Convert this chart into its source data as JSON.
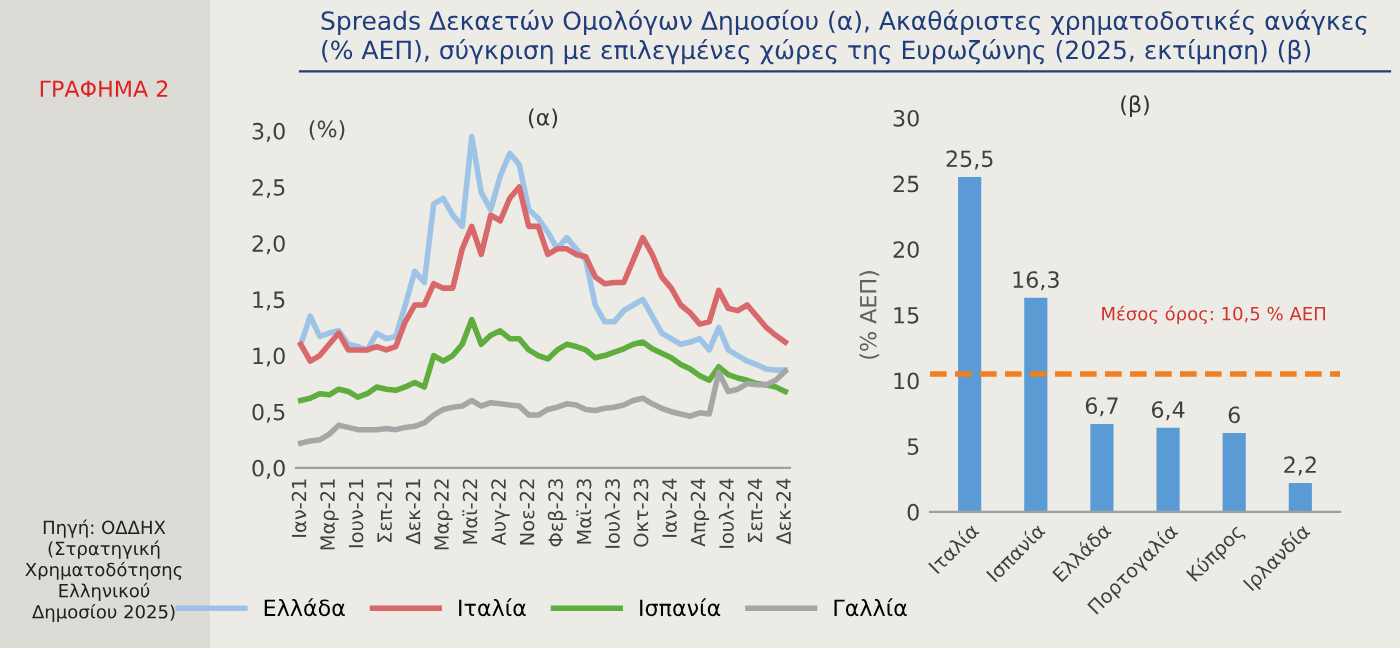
{
  "chart_data": [
    {
      "type": "line",
      "title": "Spreads Δεκαετών Ομολόγων Δημοσίου (α), Ακαθάριστες χρηματοδοτικές ανάγκες (% ΑΕΠ), σύγκριση με επιλεγμένες χώρες της Ευρωζώνης (2025, εκτίμηση) (β)",
      "subtitle": "(α)",
      "ylabel": "(%)",
      "annotations": [
        "ΓΡΑΦΗΜΑ 2",
        "Πηγή: ΟΔΔΗΧ (Στρατηγική Χρηματοδότησης Ελληνικού Δημοσίου 2025)"
      ],
      "categories": [
        "Ιαν-21",
        null,
        null,
        "Μαρ-21",
        null,
        null,
        "Ιουν-21",
        null,
        null,
        "Σεπ-21",
        null,
        null,
        "Δεκ-21",
        null,
        null,
        "Μαρ-22",
        null,
        null,
        "Μαϊ-22",
        null,
        null,
        "Αυγ-22",
        null,
        null,
        "Νοε-22",
        null,
        null,
        "Φεβ-23",
        null,
        null,
        "Μαϊ-23",
        null,
        null,
        "Ιουλ-23",
        null,
        null,
        "Οκτ-23",
        null,
        null,
        "Ιαν-24",
        null,
        null,
        "Απρ-24",
        null,
        null,
        "Ιουλ-24",
        null,
        null,
        "Σεπ-24",
        null,
        null,
        "Δεκ-24"
      ],
      "ylim": [
        0,
        3
      ],
      "yticks": [
        {
          "value": 0,
          "label": "0,0"
        },
        {
          "value": 0.5,
          "label": "0,5"
        },
        {
          "value": 1,
          "label": "1,0"
        },
        {
          "value": 1.5,
          "label": "1,5"
        },
        {
          "value": 2,
          "label": "2,0"
        },
        {
          "value": 2.5,
          "label": "2,5"
        },
        {
          "value": 3,
          "label": "3,0"
        }
      ],
      "grid": false,
      "legend": "bottom",
      "marker": "none",
      "line_style": "solid",
      "series": [
        {
          "name": "Ελλάδα",
          "color": "#9dc3e6",
          "values": [
            1.1,
            1.35,
            1.17,
            1.2,
            1.22,
            1.1,
            1.08,
            1.05,
            1.2,
            1.15,
            1.17,
            1.45,
            1.75,
            1.65,
            2.35,
            2.4,
            2.25,
            2.15,
            2.95,
            2.45,
            2.3,
            2.6,
            2.8,
            2.7,
            2.3,
            2.22,
            2.1,
            1.95,
            2.05,
            1.95,
            1.85,
            1.45,
            1.3,
            1.3,
            1.4,
            1.45,
            1.5,
            1.35,
            1.2,
            1.15,
            1.1,
            1.12,
            1.15,
            1.05,
            1.25,
            1.05,
            1.0,
            0.95,
            0.92,
            0.88,
            0.87,
            0.87
          ]
        },
        {
          "name": "Ιταλία",
          "color": "#d9686a",
          "values": [
            1.1,
            0.95,
            1.0,
            1.1,
            1.2,
            1.05,
            1.05,
            1.05,
            1.08,
            1.05,
            1.08,
            1.3,
            1.45,
            1.45,
            1.64,
            1.6,
            1.6,
            1.95,
            2.15,
            1.9,
            2.25,
            2.2,
            2.4,
            2.5,
            2.15,
            2.15,
            1.9,
            1.95,
            1.95,
            1.9,
            1.88,
            1.7,
            1.64,
            1.65,
            1.65,
            1.85,
            2.05,
            1.9,
            1.7,
            1.6,
            1.45,
            1.38,
            1.28,
            1.3,
            1.58,
            1.42,
            1.4,
            1.45,
            1.35,
            1.25,
            1.18,
            1.12
          ]
        },
        {
          "name": "Ισπανία",
          "color": "#5fad3d",
          "values": [
            0.6,
            0.62,
            0.66,
            0.65,
            0.7,
            0.68,
            0.63,
            0.66,
            0.72,
            0.7,
            0.69,
            0.72,
            0.76,
            0.72,
            1.0,
            0.95,
            1.0,
            1.1,
            1.32,
            1.1,
            1.18,
            1.22,
            1.15,
            1.15,
            1.05,
            1.0,
            0.97,
            1.05,
            1.1,
            1.08,
            1.05,
            0.98,
            1.0,
            1.03,
            1.06,
            1.1,
            1.12,
            1.06,
            1.02,
            0.98,
            0.92,
            0.88,
            0.82,
            0.78,
            0.9,
            0.83,
            0.8,
            0.78,
            0.75,
            0.74,
            0.72,
            0.68
          ]
        },
        {
          "name": "Γαλλία",
          "color": "#a6a6a6",
          "values": [
            0.22,
            0.24,
            0.25,
            0.3,
            0.38,
            0.36,
            0.34,
            0.34,
            0.34,
            0.35,
            0.34,
            0.36,
            0.37,
            0.4,
            0.47,
            0.52,
            0.54,
            0.55,
            0.6,
            0.55,
            0.58,
            0.57,
            0.56,
            0.55,
            0.47,
            0.47,
            0.52,
            0.54,
            0.57,
            0.56,
            0.52,
            0.51,
            0.53,
            0.54,
            0.56,
            0.6,
            0.62,
            0.57,
            0.53,
            0.5,
            0.48,
            0.46,
            0.49,
            0.48,
            0.85,
            0.68,
            0.7,
            0.75,
            0.74,
            0.74,
            0.78,
            0.86
          ]
        }
      ]
    },
    {
      "type": "bar",
      "title": "(β)",
      "ylabel": "(% ΑΕΠ)",
      "categories": [
        "Ιταλία",
        "Ισπανία",
        "Ελλάδα",
        "Πορτογαλία",
        "Κύπρος",
        "Ιρλανδία"
      ],
      "values": [
        25.5,
        16.3,
        6.7,
        6.4,
        6,
        2.2
      ],
      "value_labels": [
        "25,5",
        "16,3",
        "6,7",
        "6,4",
        "6",
        "2,2"
      ],
      "color": "#5b9bd5",
      "ylim": [
        0,
        30
      ],
      "yticks": [
        0,
        5,
        10,
        15,
        20,
        25,
        30
      ],
      "grid": false,
      "ref_lines": [
        {
          "axis": "y",
          "value": 10.5,
          "label": "Μέσος όρος: 10,5 % ΑΕΠ",
          "color": "#f07f22",
          "line_style": "dashed"
        }
      ]
    }
  ]
}
